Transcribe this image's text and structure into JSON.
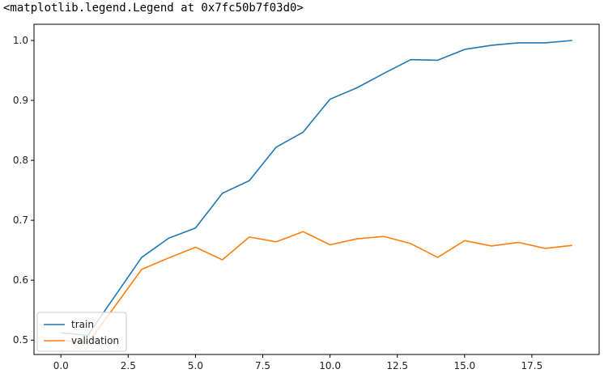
{
  "output_repr": "<matplotlib.legend.Legend at 0x7fc50b7f03d0>",
  "chart_data": {
    "type": "line",
    "title": "",
    "xlabel": "",
    "ylabel": "",
    "xlim": [
      -1.0,
      20.0
    ],
    "ylim": [
      0.476,
      1.027
    ],
    "xticks": [
      0.0,
      2.5,
      5.0,
      7.5,
      10.0,
      12.5,
      15.0,
      17.5
    ],
    "xtick_labels": [
      "0.0",
      "2.5",
      "5.0",
      "7.5",
      "10.0",
      "12.5",
      "15.0",
      "17.5"
    ],
    "yticks": [
      0.5,
      0.6,
      0.7,
      0.8,
      0.9,
      1.0
    ],
    "ytick_labels": [
      "0.5",
      "0.6",
      "0.7",
      "0.8",
      "0.9",
      "1.0"
    ],
    "grid": false,
    "legend_position": "lower-left",
    "x": [
      0,
      1,
      2,
      3,
      4,
      5,
      6,
      7,
      8,
      9,
      10,
      11,
      12,
      13,
      14,
      15,
      16,
      17,
      18,
      19
    ],
    "series": [
      {
        "name": "train",
        "color": "#1f77b4",
        "values": [
          0.512,
          0.508,
          0.573,
          0.638,
          0.67,
          0.687,
          0.745,
          0.766,
          0.822,
          0.847,
          0.902,
          0.921,
          0.945,
          0.968,
          0.967,
          0.985,
          0.992,
          0.996,
          0.996,
          1.0
        ]
      },
      {
        "name": "validation",
        "color": "#ff7f0e",
        "values": [
          0.5,
          0.495,
          0.556,
          0.618,
          0.637,
          0.655,
          0.634,
          0.672,
          0.664,
          0.681,
          0.659,
          0.669,
          0.673,
          0.661,
          0.638,
          0.666,
          0.657,
          0.663,
          0.653,
          0.658
        ]
      }
    ]
  }
}
